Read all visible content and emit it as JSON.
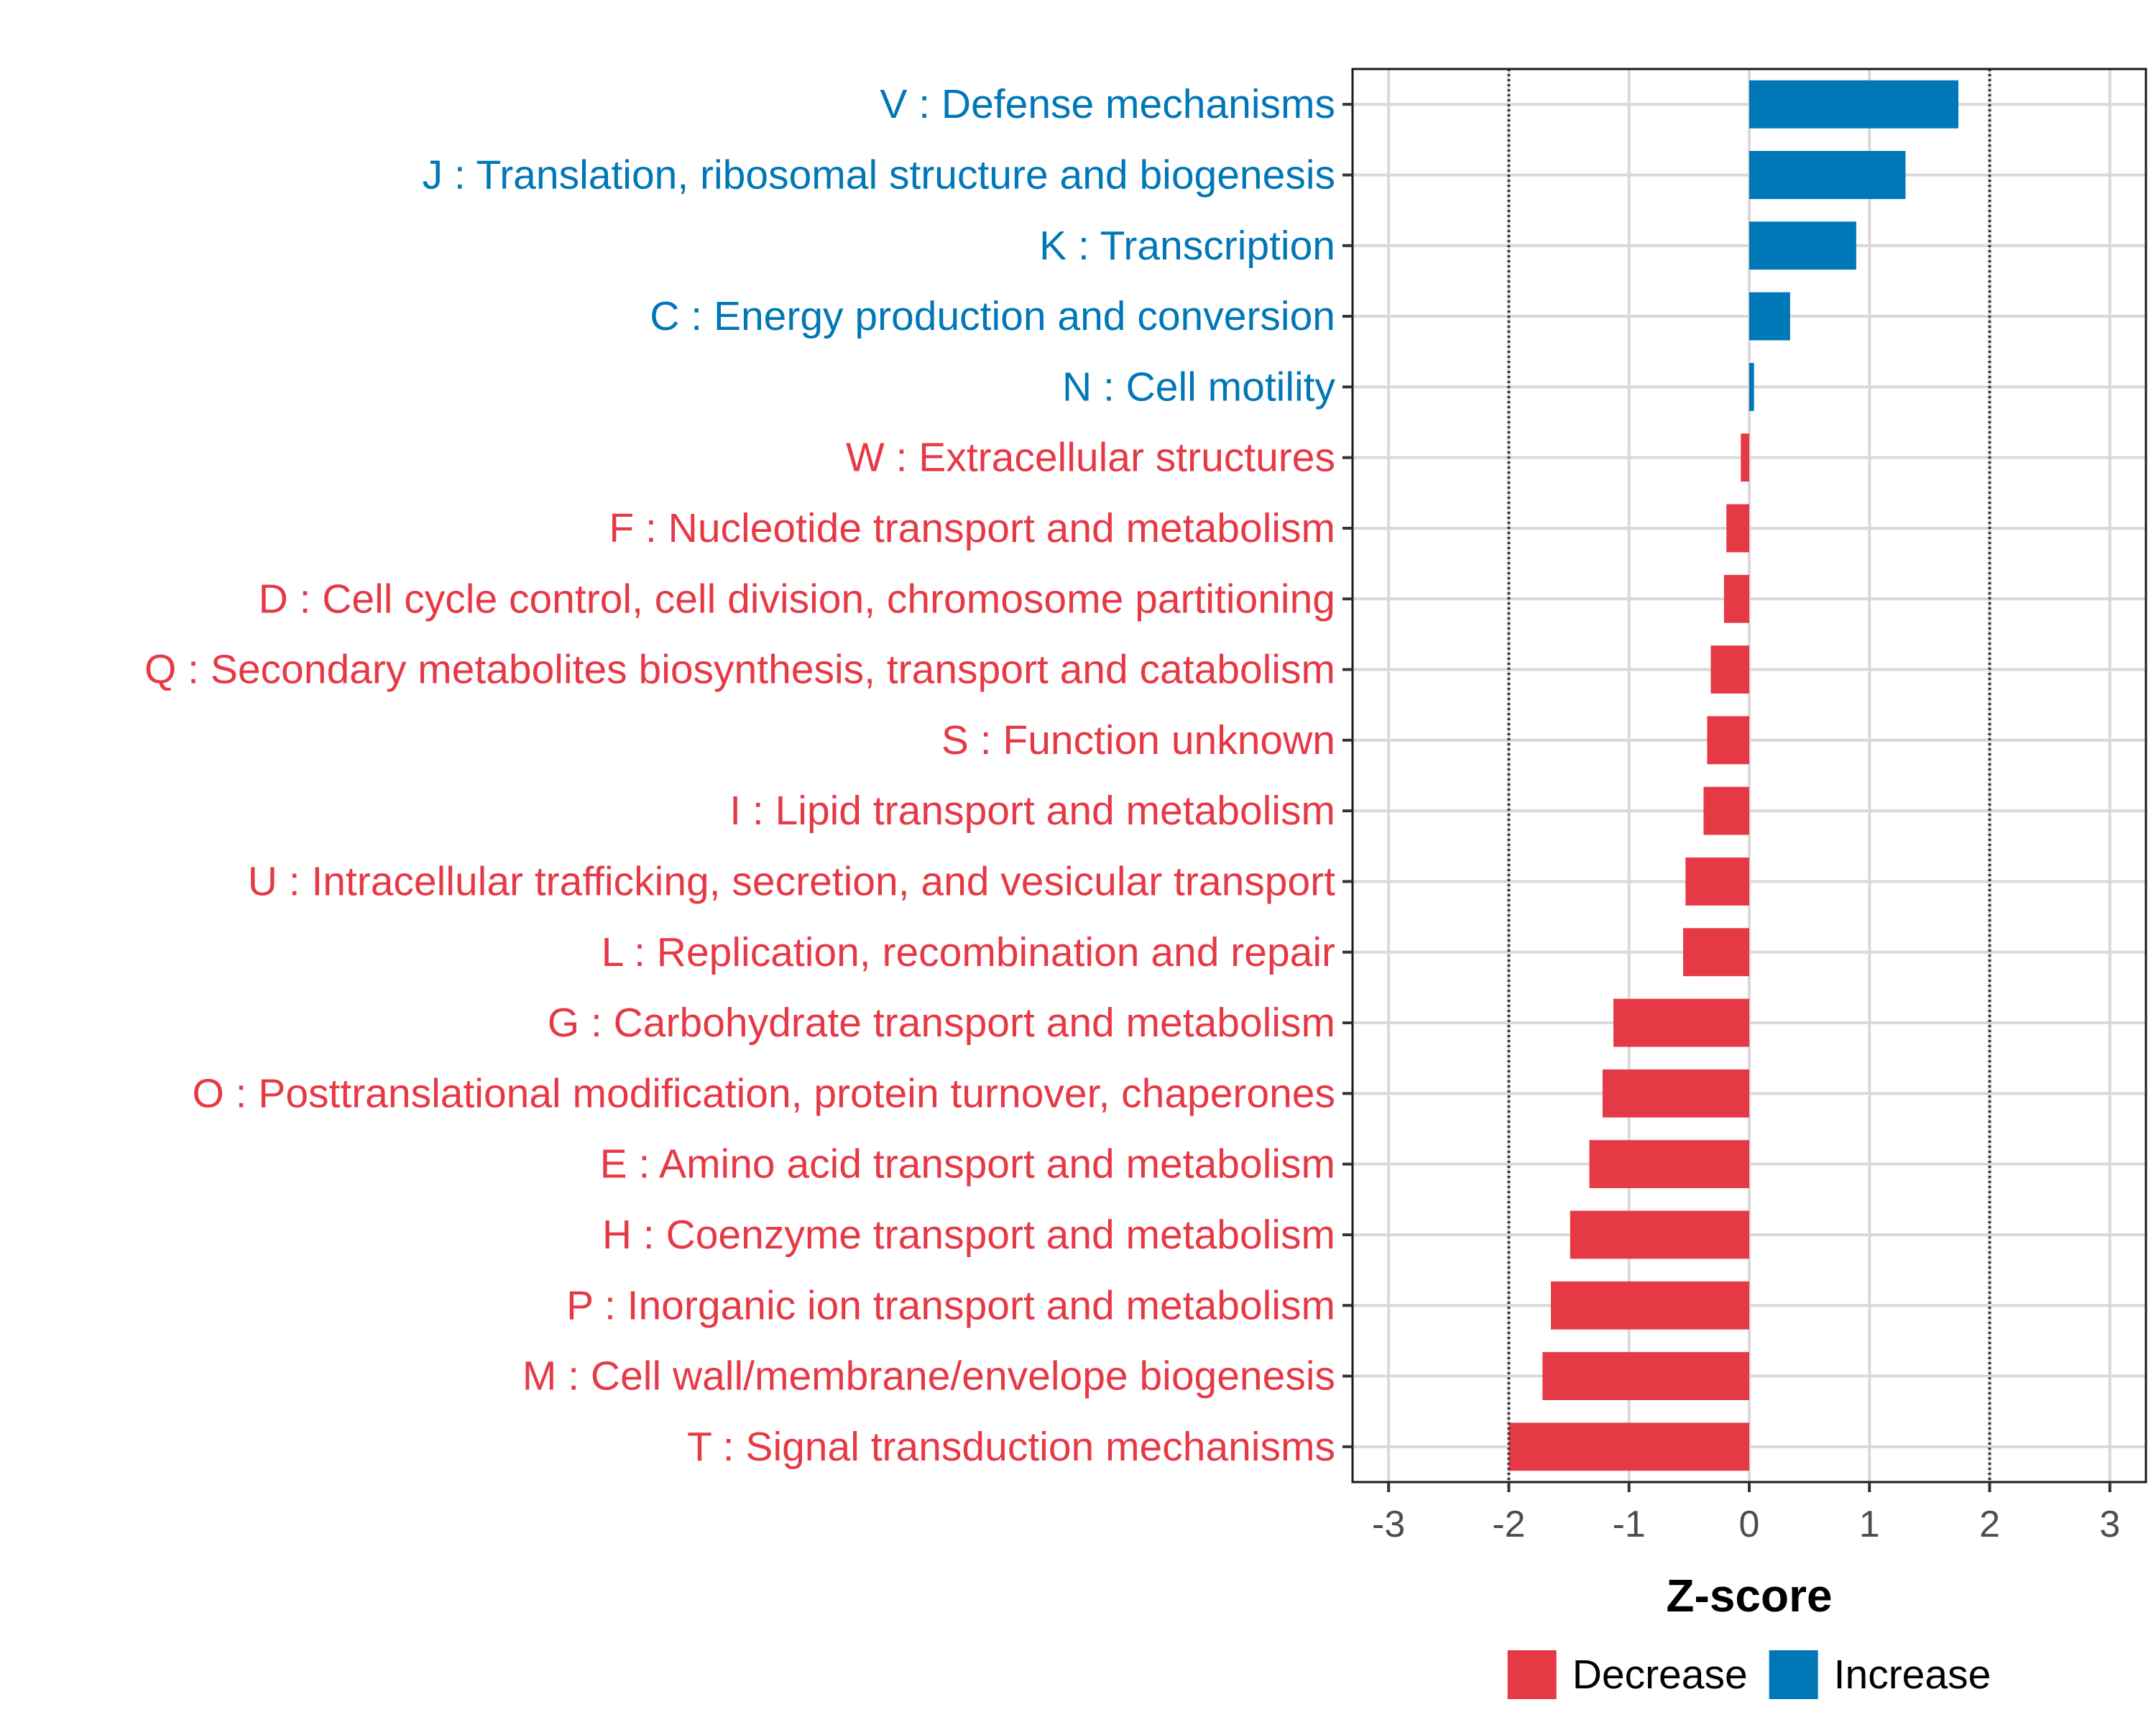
{
  "chart_data": {
    "type": "bar",
    "orientation": "horizontal",
    "title": "",
    "xlabel": "Z-score",
    "ylabel": "",
    "xlim": [
      -3.3,
      3.3
    ],
    "xticks": [
      -3,
      -2,
      -1,
      0,
      1,
      2,
      3
    ],
    "xtick_labels": [
      "-3",
      "-2",
      "-1",
      "0",
      "1",
      "2",
      "3"
    ],
    "threshold_lines": [
      -2,
      2
    ],
    "grid": true,
    "categories": [
      "V : Defense mechanisms",
      "J : Translation, ribosomal structure and biogenesis",
      "K : Transcription",
      "C : Energy production and conversion",
      "N : Cell motility",
      "W : Extracellular structures",
      "F : Nucleotide transport and metabolism",
      "D : Cell cycle control, cell division, chromosome partitioning",
      "Q : Secondary metabolites biosynthesis, transport and catabolism",
      "S : Function unknown",
      "I : Lipid transport and metabolism",
      "U : Intracellular trafficking, secretion, and vesicular transport",
      "L : Replication, recombination and repair",
      "G : Carbohydrate transport and metabolism",
      "O : Posttranslational modification, protein turnover, chaperones",
      "E : Amino acid transport and metabolism",
      "H : Coenzyme transport and metabolism",
      "P : Inorganic ion transport and metabolism",
      "M : Cell wall/membrane/envelope biogenesis",
      "T : Signal transduction mechanisms"
    ],
    "values": [
      1.74,
      1.3,
      0.89,
      0.34,
      0.04,
      -0.07,
      -0.19,
      -0.21,
      -0.32,
      -0.35,
      -0.38,
      -0.53,
      -0.55,
      -1.13,
      -1.22,
      -1.33,
      -1.49,
      -1.65,
      -1.72,
      -2.0
    ],
    "groups": [
      "Increase",
      "Increase",
      "Increase",
      "Increase",
      "Increase",
      "Decrease",
      "Decrease",
      "Decrease",
      "Decrease",
      "Decrease",
      "Decrease",
      "Decrease",
      "Decrease",
      "Decrease",
      "Decrease",
      "Decrease",
      "Decrease",
      "Decrease",
      "Decrease",
      "Decrease"
    ],
    "legend": {
      "position": "bottom",
      "entries": [
        {
          "label": "Decrease",
          "color": "#E63946"
        },
        {
          "label": "Increase",
          "color": "#0077B6"
        }
      ]
    },
    "colors": {
      "Decrease": "#E63946",
      "Increase": "#0077B6"
    }
  }
}
